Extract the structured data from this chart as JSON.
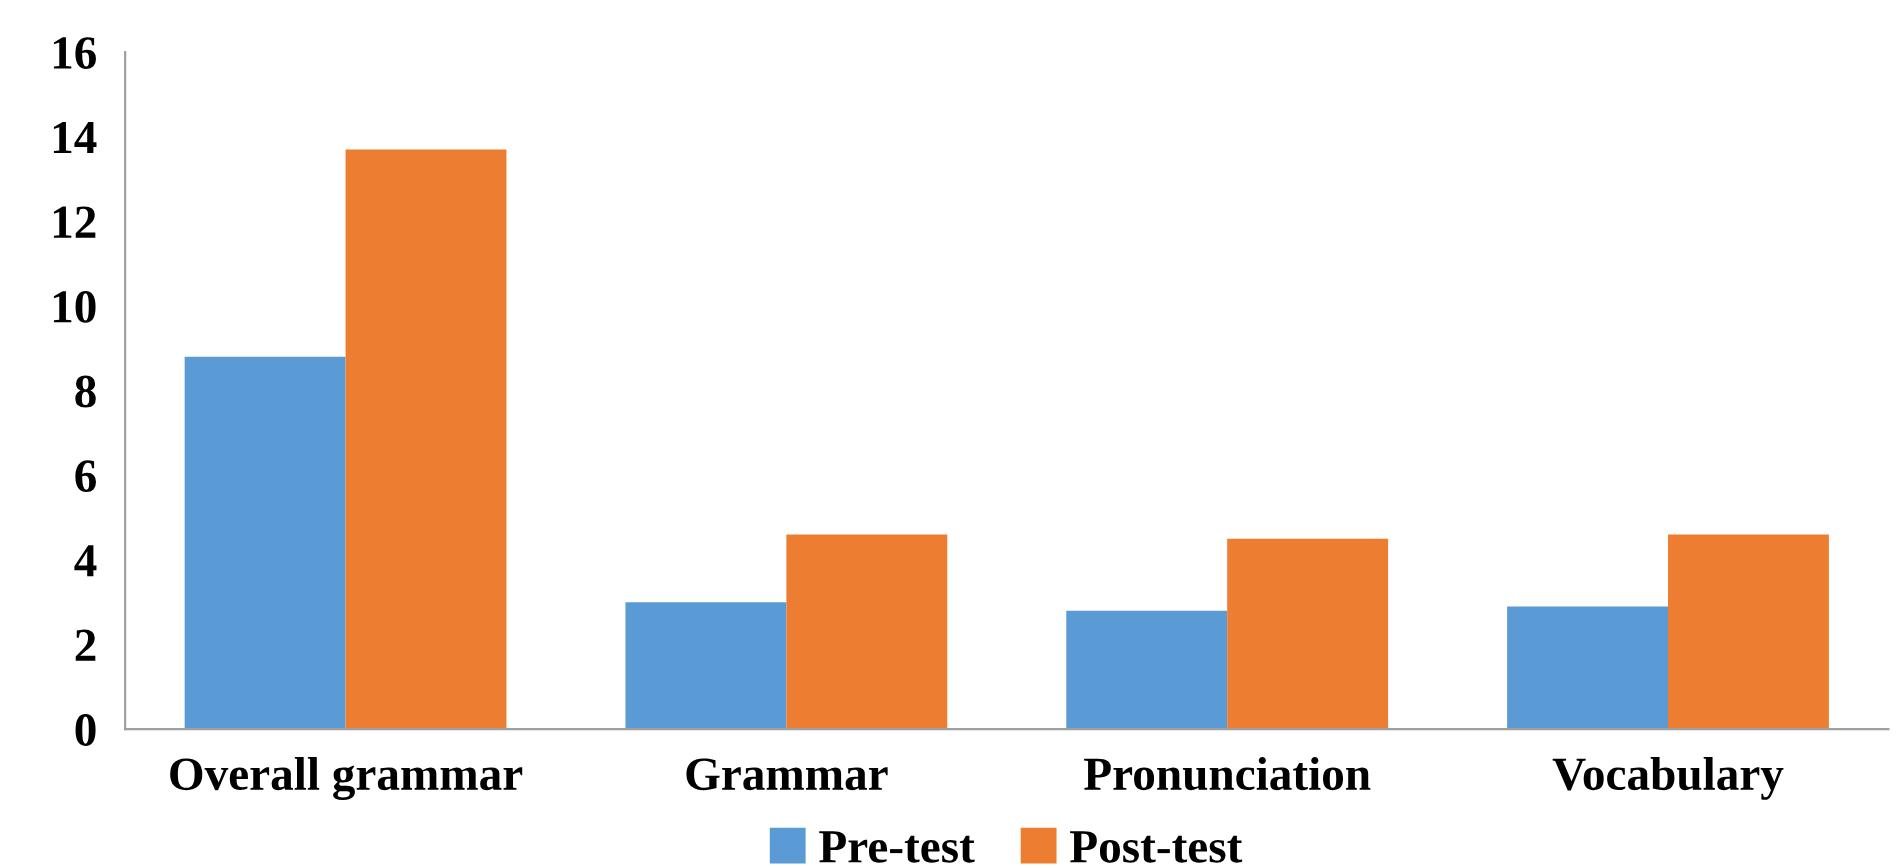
{
  "chart_data": {
    "type": "bar",
    "categories": [
      "Overall grammar",
      "Grammar",
      "Pronunciation",
      "Vocabulary"
    ],
    "series": [
      {
        "name": "Pre-test",
        "color": "#5b9bd5",
        "values": [
          8.8,
          3.0,
          2.8,
          2.9
        ]
      },
      {
        "name": "Post-test",
        "color": "#ed7d31",
        "values": [
          13.7,
          4.6,
          4.5,
          4.6
        ]
      }
    ],
    "ylim": [
      0,
      16
    ],
    "yticks": [
      0,
      2,
      4,
      6,
      8,
      10,
      12,
      14,
      16
    ],
    "grid": false,
    "legend": "bottom"
  }
}
